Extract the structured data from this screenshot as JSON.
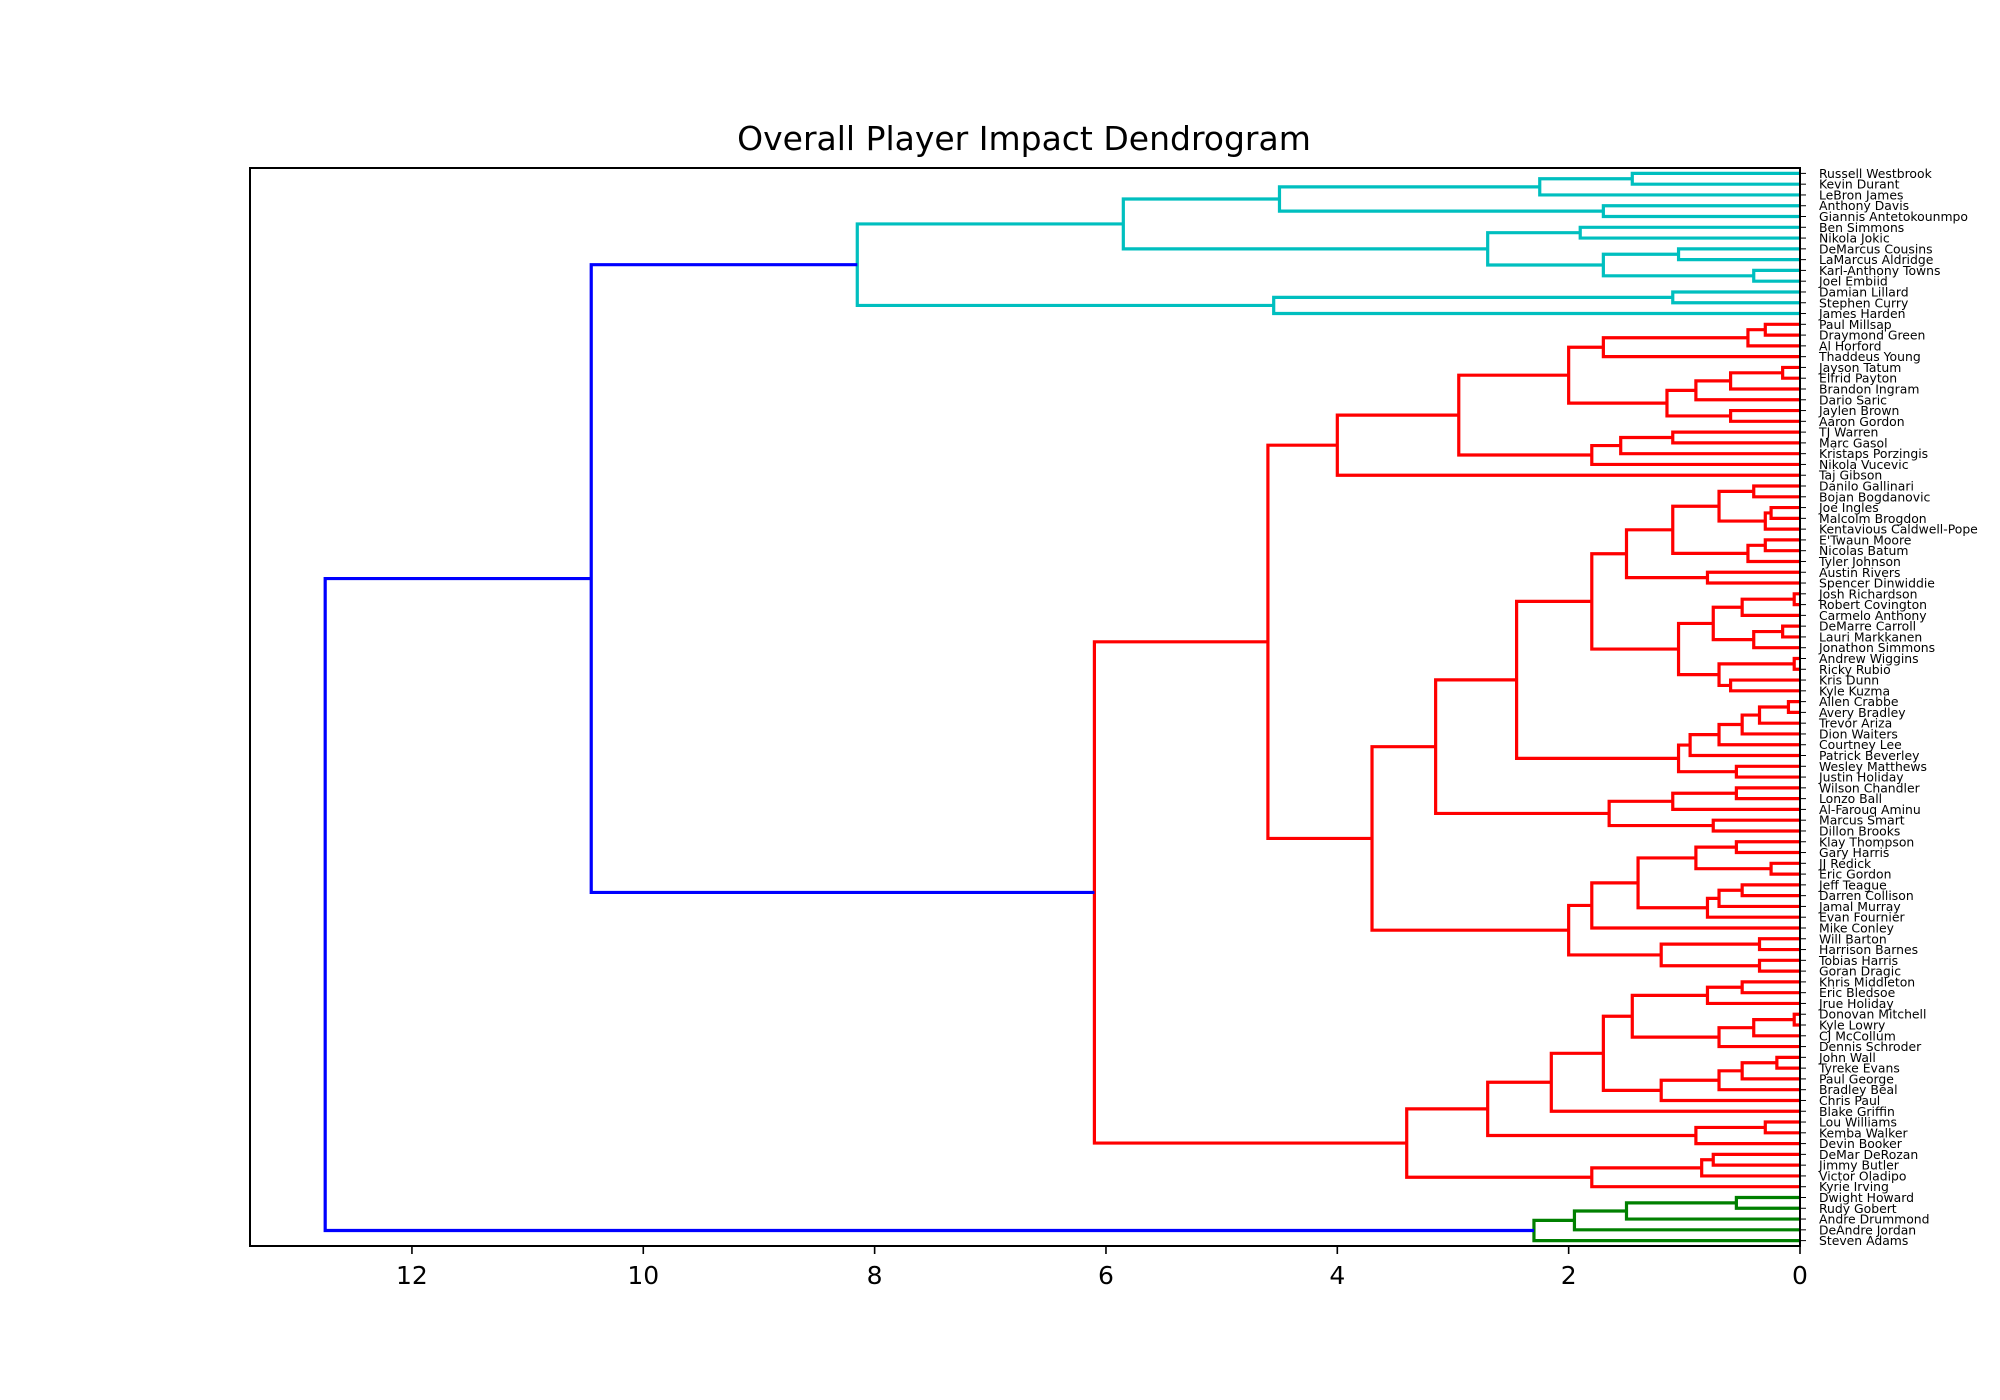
{
  "chart_data": {
    "type": "dendrogram",
    "title": "Overall Player Impact Dendrogram",
    "orientation": "left",
    "xlim": [
      13.4,
      0
    ],
    "xticks": [
      12,
      10,
      8,
      6,
      4,
      2,
      0
    ],
    "xtick_labels": [
      "12",
      "10",
      "8",
      "6",
      "4",
      "2",
      "0"
    ],
    "grid": false,
    "colors": {
      "cyan": "#00bfbf",
      "red": "#ff0000",
      "green": "#008000",
      "blue": "#0000ff"
    },
    "leaves": [
      "Russell Westbrook",
      "Kevin Durant",
      "LeBron James",
      "Anthony Davis",
      "Giannis Antetokounmpo",
      "Ben Simmons",
      "Nikola Jokic",
      "DeMarcus Cousins",
      "LaMarcus Aldridge",
      "Karl-Anthony Towns",
      "Joel Embiid",
      "Damian Lillard",
      "Stephen Curry",
      "James Harden",
      "Paul Millsap",
      "Draymond Green",
      "Al Horford",
      "Thaddeus Young",
      "Jayson Tatum",
      "Elfrid Payton",
      "Brandon Ingram",
      "Dario Saric",
      "Jaylen Brown",
      "Aaron Gordon",
      "TJ Warren",
      "Marc Gasol",
      "Kristaps Porzingis",
      "Nikola Vucevic",
      "Taj Gibson",
      "Danilo Gallinari",
      "Bojan Bogdanovic",
      "Joe Ingles",
      "Malcolm Brogdon",
      "Kentavious Caldwell-Pope",
      "E'Twaun Moore",
      "Nicolas Batum",
      "Tyler Johnson",
      "Austin Rivers",
      "Spencer Dinwiddie",
      "Josh Richardson",
      "Robert Covington",
      "Carmelo Anthony",
      "DeMarre Carroll",
      "Lauri Markkanen",
      "Jonathon Simmons",
      "Andrew Wiggins",
      "Ricky Rubio",
      "Kris Dunn",
      "Kyle Kuzma",
      "Allen Crabbe",
      "Avery Bradley",
      "Trevor Ariza",
      "Dion Waiters",
      "Courtney Lee",
      "Patrick Beverley",
      "Wesley Matthews",
      "Justin Holiday",
      "Wilson Chandler",
      "Lonzo Ball",
      "Al-Farouq Aminu",
      "Marcus Smart",
      "Dillon Brooks",
      "Klay Thompson",
      "Gary Harris",
      "JJ Redick",
      "Eric Gordon",
      "Jeff Teague",
      "Darren Collison",
      "Jamal Murray",
      "Evan Fournier",
      "Mike Conley",
      "Will Barton",
      "Harrison Barnes",
      "Tobias Harris",
      "Goran Dragic",
      "Khris Middleton",
      "Eric Bledsoe",
      "Jrue Holiday",
      "Donovan Mitchell",
      "Kyle Lowry",
      "CJ McCollum",
      "Dennis Schroder",
      "John Wall",
      "Tyreke Evans",
      "Paul George",
      "Bradley Beal",
      "Chris Paul",
      "Blake Griffin",
      "Lou Williams",
      "Kemba Walker",
      "Devin Booker",
      "DeMar DeRozan",
      "Jimmy Butler",
      "Victor Oladipo",
      "Kyrie Irving",
      "Dwight Howard",
      "Rudy Gobert",
      "Andre Drummond",
      "DeAndre Jordan",
      "Steven Adams"
    ],
    "tree": [
      "blue",
      12.75,
      [
        "blue",
        10.45,
        [
          "cyan",
          8.15,
          [
            "cyan",
            5.85,
            [
              "cyan",
              4.5,
              [
                "cyan",
                2.25,
                [
                  "cyan",
                  1.45,
                  0,
                  1
                ],
                2
              ],
              [
                "cyan",
                1.7,
                3,
                4
              ]
            ],
            [
              "cyan",
              2.7,
              [
                "cyan",
                1.9,
                5,
                6
              ],
              [
                "cyan",
                1.7,
                [
                  "cyan",
                  1.05,
                  7,
                  8
                ],
                [
                  "cyan",
                  0.4,
                  9,
                  10
                ]
              ]
            ]
          ],
          [
            "cyan",
            4.55,
            [
              "cyan",
              1.1,
              11,
              12
            ],
            13
          ]
        ],
        [
          "red",
          6.1,
          [
            "red",
            4.6,
            [
              "red",
              4.0,
              [
                "red",
                2.95,
                [
                  "red",
                  2.0,
                  [
                    "red",
                    1.7,
                    [
                      "red",
                      0.45,
                      [
                        "red",
                        0.3,
                        14,
                        15
                      ],
                      16
                    ],
                    17
                  ],
                  [
                    "red",
                    1.15,
                    [
                      "red",
                      0.9,
                      [
                        "red",
                        0.6,
                        [
                          "red",
                          0.15,
                          18,
                          19
                        ],
                        20
                      ],
                      21
                    ],
                    [
                      "red",
                      0.6,
                      22,
                      23
                    ]
                  ]
                ],
                [
                  "red",
                  1.8,
                  [
                    "red",
                    1.55,
                    [
                      "red",
                      1.1,
                      24,
                      25
                    ],
                    26
                  ],
                  27
                ]
              ],
              28
            ],
            [
              "red",
              3.7,
              [
                "red",
                3.15,
                [
                  "red",
                  2.45,
                  [
                    "red",
                    1.8,
                    [
                      "red",
                      1.5,
                      [
                        "red",
                        1.1,
                        [
                          "red",
                          0.7,
                          [
                            "red",
                            0.4,
                            29,
                            30
                          ],
                          [
                            "red",
                            0.3,
                            [
                              "red",
                              0.25,
                              31,
                              32
                            ],
                            33
                          ]
                        ],
                        [
                          "red",
                          0.45,
                          [
                            "red",
                            0.3,
                            34,
                            35
                          ],
                          36
                        ]
                      ],
                      [
                        "red",
                        0.8,
                        37,
                        38
                      ]
                    ],
                    [
                      "red",
                      1.05,
                      [
                        "red",
                        0.75,
                        [
                          "red",
                          0.5,
                          [
                            "red",
                            0.05,
                            39,
                            40
                          ],
                          41
                        ],
                        [
                          "red",
                          0.4,
                          [
                            "red",
                            0.15,
                            42,
                            43
                          ],
                          44
                        ]
                      ],
                      [
                        "red",
                        0.7,
                        [
                          "red",
                          0.05,
                          45,
                          46
                        ],
                        [
                          "red",
                          0.6,
                          47,
                          48
                        ]
                      ]
                    ]
                  ],
                  [
                    "red",
                    1.05,
                    [
                      "red",
                      0.95,
                      [
                        "red",
                        0.7,
                        [
                          "red",
                          0.5,
                          [
                            "red",
                            0.35,
                            [
                              "red",
                              0.1,
                              49,
                              50
                            ],
                            51
                          ],
                          52
                        ],
                        53
                      ],
                      54
                    ],
                    [
                      "red",
                      0.55,
                      55,
                      56
                    ]
                  ]
                ],
                [
                  "red",
                  1.65,
                  [
                    "red",
                    1.1,
                    [
                      "red",
                      0.55,
                      57,
                      58
                    ],
                    59
                  ],
                  [
                    "red",
                    0.75,
                    60,
                    61
                  ]
                ]
              ],
              [
                "red",
                2.0,
                [
                  "red",
                  1.8,
                  [
                    "red",
                    1.4,
                    [
                      "red",
                      0.9,
                      [
                        "red",
                        0.55,
                        62,
                        63
                      ],
                      [
                        "red",
                        0.25,
                        64,
                        65
                      ]
                    ],
                    [
                      "red",
                      0.8,
                      [
                        "red",
                        0.7,
                        [
                          "red",
                          0.5,
                          66,
                          67
                        ],
                        68
                      ],
                      69
                    ]
                  ],
                  70
                ],
                [
                  "red",
                  1.2,
                  [
                    "red",
                    0.35,
                    71,
                    72
                  ],
                  [
                    "red",
                    0.35,
                    73,
                    74
                  ]
                ]
              ]
            ]
          ],
          [
            "red",
            3.4,
            [
              "red",
              2.7,
              [
                "red",
                2.15,
                [
                  "red",
                  1.7,
                  [
                    "red",
                    1.45,
                    [
                      "red",
                      0.8,
                      [
                        "red",
                        0.5,
                        75,
                        76
                      ],
                      77
                    ],
                    [
                      "red",
                      0.7,
                      [
                        "red",
                        0.4,
                        [
                          "red",
                          0.05,
                          78,
                          79
                        ],
                        80
                      ],
                      81
                    ]
                  ],
                  [
                    "red",
                    1.2,
                    [
                      "red",
                      0.7,
                      [
                        "red",
                        0.5,
                        [
                          "red",
                          0.2,
                          82,
                          83
                        ],
                        84
                      ],
                      85
                    ],
                    86
                  ]
                ],
                87
              ],
              [
                "red",
                0.9,
                [
                  "red",
                  0.3,
                  88,
                  89
                ],
                90
              ]
            ],
            [
              "red",
              1.8,
              [
                "red",
                0.85,
                [
                  "red",
                  0.75,
                  91,
                  92
                ],
                93
              ],
              94
            ]
          ]
        ]
      ],
      [
        "green",
        2.3,
        [
          "green",
          1.95,
          [
            "green",
            1.5,
            [
              "green",
              0.55,
              95,
              96
            ],
            97
          ],
          98
        ],
        99
      ]
    ]
  }
}
